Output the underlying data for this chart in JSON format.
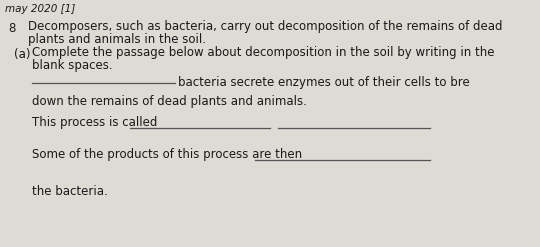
{
  "bg_color": "#dedad4",
  "text_color": "#1a1a1a",
  "question_number": "8",
  "line1": "Decomposers, such as bacteria, carry out decomposition of the remains of dead",
  "line2": "plants and animals in the soil.",
  "sub_label": "(a)",
  "sub_line1": "Complete the passage below about decomposition in the soil by writing in the",
  "sub_line2": "blank spaces.",
  "passage_line1_suffix": "bacteria secrete enzymes out of their cells to bre",
  "passage_line2": "down the remains of dead plants and animals.",
  "passage_line3_prefix": "This process is called ",
  "passage_line4_prefix": "Some of the products of this process are then ",
  "passage_line5": "the bacteria.",
  "header_text": "may 2020 [1]",
  "font_size": 8.5,
  "line_color": "#555555"
}
